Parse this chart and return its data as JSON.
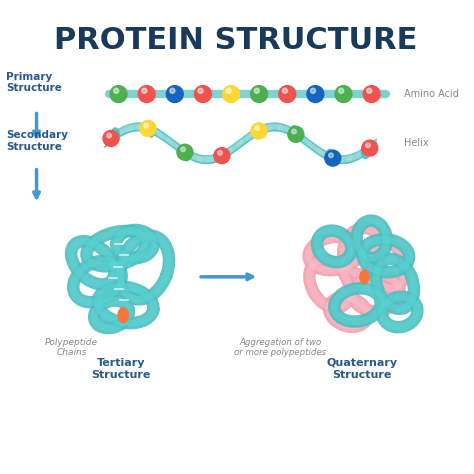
{
  "title": "PROTEIN STRUCTURE",
  "title_color": "#1a3a5c",
  "title_fontsize": 22,
  "bg_color": "#ffffff",
  "teal": "#4bbfbf",
  "teal_dark": "#3aacac",
  "pink": "#f4a0b0",
  "blue_arrow": "#4499cc",
  "label_color": "#2a5a8a",
  "gray_label": "#888888",
  "bead_colors": [
    "#4caf50",
    "#ef5350",
    "#1565c0",
    "#ef5350",
    "#fdd835",
    "#4caf50",
    "#ef5350",
    "#1565c0"
  ],
  "helix_colors": [
    "#ef5350",
    "#fdd835",
    "#4caf50",
    "#ef5350",
    "#fdd835",
    "#4caf50",
    "#1565c0"
  ],
  "orange": "#f4763a",
  "labels": {
    "primary": "Primary\nStructure",
    "secondary": "Secondary\nStructure",
    "amino_acid": "Amino Acid",
    "helix": "Helix",
    "polypeptide": "Polypeptide\nChains",
    "aggregation": "Aggregation of two\nor more polypeptides",
    "tertiary": "Tertiary\nStructure",
    "quaternary": "Quaternary\nStructure"
  }
}
